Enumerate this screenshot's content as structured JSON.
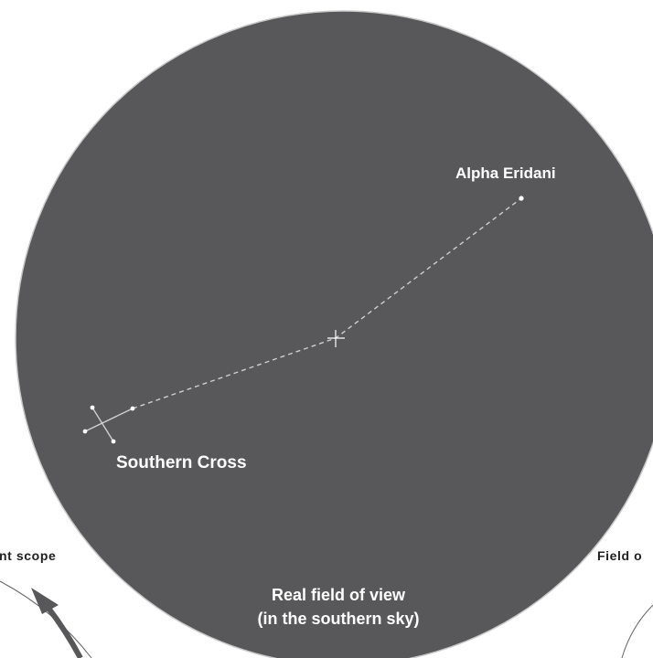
{
  "sky": {
    "alpha_eridani": "Alpha Eridani",
    "southern_cross": "Southern Cross",
    "field_title_line1": "Real field of view",
    "field_title_line2": "(in the southern sky)"
  },
  "side_labels": {
    "left": "nt scope",
    "right": "Field o"
  },
  "colors": {
    "field": "#58585a",
    "field_edge": "#c9c9c9",
    "label": "#ffffff",
    "guide_line": "#cfcfcf",
    "arrow": "#58585a"
  }
}
